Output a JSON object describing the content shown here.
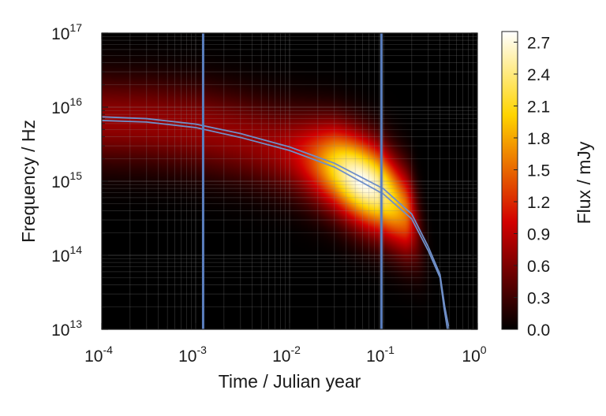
{
  "chart_data": {
    "type": "heatmap",
    "title": "",
    "xlabel": "Time / Julian year",
    "ylabel": "Frequency / Hz",
    "x_scale": "log",
    "y_scale": "log",
    "xlim": [
      0.0001,
      1
    ],
    "ylim": [
      10000000000000.0,
      1e+17
    ],
    "x_ticks": [
      {
        "base": "10",
        "exp": "-4",
        "value": 0.0001
      },
      {
        "base": "10",
        "exp": "-3",
        "value": 0.001
      },
      {
        "base": "10",
        "exp": "-2",
        "value": 0.01
      },
      {
        "base": "10",
        "exp": "-1",
        "value": 0.1
      },
      {
        "base": "10",
        "exp": "0",
        "value": 1
      }
    ],
    "y_ticks": [
      {
        "base": "10",
        "exp": "13",
        "value": 10000000000000.0
      },
      {
        "base": "10",
        "exp": "14",
        "value": 100000000000000.0
      },
      {
        "base": "10",
        "exp": "15",
        "value": 1000000000000000.0
      },
      {
        "base": "10",
        "exp": "16",
        "value": 1e+16
      },
      {
        "base": "10",
        "exp": "17",
        "value": 1e+17
      }
    ],
    "grid": true,
    "colorbar": {
      "label": "Flux / mJy",
      "range": [
        0.0,
        2.8
      ],
      "ticks": [
        "0.0",
        "0.3",
        "0.6",
        "0.9",
        "1.2",
        "1.5",
        "1.8",
        "2.1",
        "2.4",
        "2.7"
      ],
      "colormap": "hot"
    },
    "flux_peak": {
      "time": 0.06,
      "frequency": 800000000000000.0,
      "flux": 2.8
    },
    "vertical_lines": [
      {
        "time": 0.0012,
        "color": "#5b7fbf"
      },
      {
        "time": 0.095,
        "color": "#5b7fbf"
      }
    ],
    "curves": [
      {
        "color": "#6f8fc8",
        "points": [
          [
            0.0001,
            7400000000000000.0
          ],
          [
            0.0003,
            7000000000000000.0
          ],
          [
            0.001,
            5900000000000000.0
          ],
          [
            0.003,
            4400000000000000.0
          ],
          [
            0.01,
            2900000000000000.0
          ],
          [
            0.03,
            1750000000000000.0
          ],
          [
            0.1,
            790000000000000.0
          ],
          [
            0.2,
            360000000000000.0
          ],
          [
            0.3,
            130000000000000.0
          ],
          [
            0.4,
            55000000000000.0
          ],
          [
            0.45,
            20000000000000.0
          ],
          [
            0.5,
            10000000000000.0
          ]
        ]
      },
      {
        "color": "#6f8fc8",
        "points": [
          [
            0.0001,
            6600000000000000.0
          ],
          [
            0.0003,
            6300000000000000.0
          ],
          [
            0.001,
            5300000000000000.0
          ],
          [
            0.003,
            3900000000000000.0
          ],
          [
            0.01,
            2600000000000000.0
          ],
          [
            0.03,
            1550000000000000.0
          ],
          [
            0.1,
            670000000000000.0
          ],
          [
            0.2,
            310000000000000.0
          ],
          [
            0.3,
            115000000000000.0
          ],
          [
            0.4,
            50000000000000.0
          ],
          [
            0.44,
            20000000000000.0
          ],
          [
            0.48,
            10000000000000.0
          ]
        ]
      }
    ]
  }
}
